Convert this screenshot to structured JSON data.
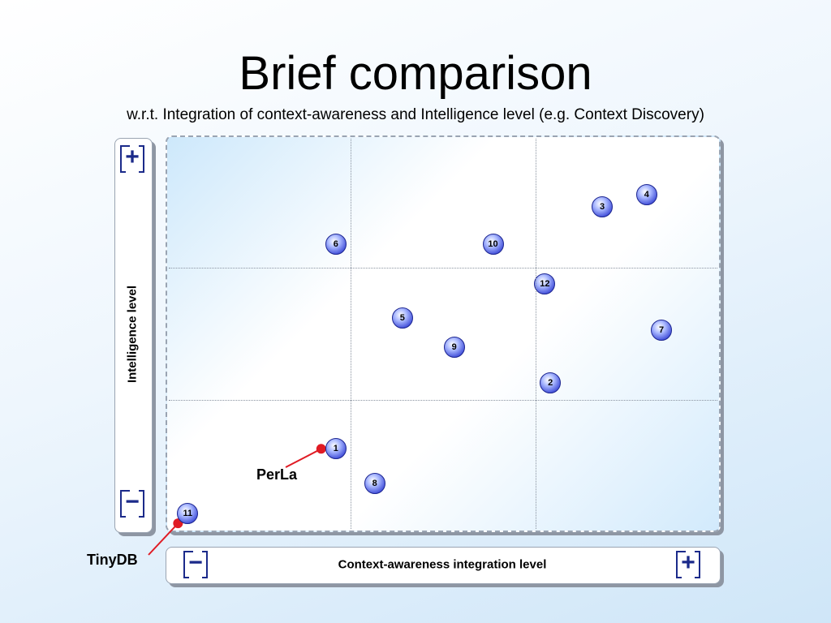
{
  "header": {
    "title": "Brief comparison",
    "subtitle": "w.r.t. Integration of context-awareness and Intelligence level (e.g. Context Discovery)"
  },
  "chart_data": {
    "type": "scatter",
    "title": "Brief comparison",
    "subtitle": "w.r.t. Integration of context-awareness and Intelligence level (e.g. Context Discovery)",
    "xlabel": "Context-awareness integration level",
    "ylabel": "Intelligence level",
    "x_min_label": "−",
    "x_max_label": "+",
    "y_min_label": "−",
    "y_max_label": "+",
    "xlim": [
      0,
      3
    ],
    "ylim": [
      0,
      3
    ],
    "grid": true,
    "points": [
      {
        "label": "1",
        "x": 0.92,
        "y": 0.63
      },
      {
        "label": "2",
        "x": 2.08,
        "y": 1.13
      },
      {
        "label": "3",
        "x": 2.36,
        "y": 2.46
      },
      {
        "label": "4",
        "x": 2.6,
        "y": 2.55
      },
      {
        "label": "5",
        "x": 1.28,
        "y": 1.62
      },
      {
        "label": "6",
        "x": 0.92,
        "y": 2.18
      },
      {
        "label": "7",
        "x": 2.68,
        "y": 1.53
      },
      {
        "label": "8",
        "x": 1.13,
        "y": 0.37
      },
      {
        "label": "9",
        "x": 1.56,
        "y": 1.4
      },
      {
        "label": "10",
        "x": 1.77,
        "y": 2.18
      },
      {
        "label": "11",
        "x": 0.12,
        "y": 0.14
      },
      {
        "label": "12",
        "x": 2.05,
        "y": 1.88
      }
    ],
    "annotations": [
      {
        "text": "PerLa",
        "target": "1"
      },
      {
        "text": "TinyDB",
        "target": "11"
      }
    ],
    "colors": {
      "point": "#3a47d6",
      "marker_line": "#e01b24",
      "marker_dot": "#e01b24",
      "icon": "#1b2a8a"
    }
  }
}
